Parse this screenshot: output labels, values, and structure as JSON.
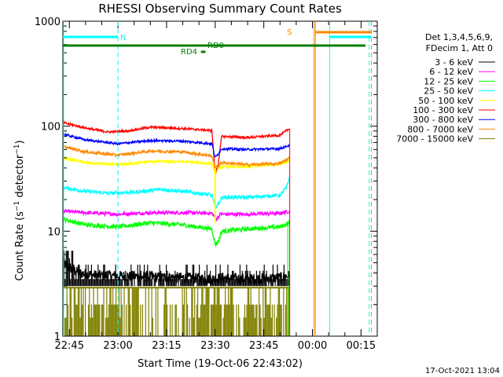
{
  "chart_data": {
    "type": "line",
    "title": "RHESSI Observing Summary Count Rates",
    "xlabel": "Start Time (19-Oct-06 22:43:02)",
    "ylabel": "Count Rate (s^-1 detector^-1)",
    "ylabel_parts": {
      "main": "Count Rate (s",
      "sup1": "−1",
      "mid": " detector",
      "sup2": "−1",
      "end": ")"
    },
    "y_scale": "log",
    "ylim": [
      1,
      1000
    ],
    "xlim_minutes": [
      -2,
      95
    ],
    "x_ticks": [
      {
        "label": "22:45",
        "m": 0
      },
      {
        "label": "23:00",
        "m": 15
      },
      {
        "label": "23:15",
        "m": 30
      },
      {
        "label": "23:30",
        "m": 45
      },
      {
        "label": "23:45",
        "m": 60
      },
      {
        "label": "00:00",
        "m": 75
      },
      {
        "label": "00:15",
        "m": 90
      }
    ],
    "y_ticks": [
      {
        "label": "1",
        "v": 1
      },
      {
        "label": "10",
        "v": 10
      },
      {
        "label": "100",
        "v": 100
      },
      {
        "label": "1000",
        "v": 1000
      }
    ],
    "legend": {
      "header": [
        "Det 1,3,4,5,6,9,",
        "FDecim 1, Att 0"
      ],
      "position": "right"
    },
    "series": [
      {
        "name": "3 - 6 keV",
        "color": "#000000",
        "noise": 0.12,
        "points": [
          [
            -2,
            5.0
          ],
          [
            0,
            4.5
          ],
          [
            3,
            4.0
          ],
          [
            8,
            3.8
          ],
          [
            20,
            3.7
          ],
          [
            35,
            3.6
          ],
          [
            44,
            3.5
          ],
          [
            47,
            3.6
          ],
          [
            55,
            3.5
          ],
          [
            65,
            3.6
          ],
          [
            68,
            3.8
          ]
        ]
      },
      {
        "name": "6 - 12 keV",
        "color": "#ff00ff",
        "noise": 0.04,
        "points": [
          [
            -2,
            15.5
          ],
          [
            5,
            15
          ],
          [
            15,
            14.5
          ],
          [
            25,
            15
          ],
          [
            35,
            15
          ],
          [
            44,
            14.8
          ],
          [
            45.5,
            13
          ],
          [
            46.5,
            14.5
          ],
          [
            55,
            14.5
          ],
          [
            65,
            14.8
          ],
          [
            68,
            15.5
          ]
        ]
      },
      {
        "name": "12 - 25 keV",
        "color": "#00ff00",
        "noise": 0.05,
        "points": [
          [
            -2,
            13
          ],
          [
            5,
            11.5
          ],
          [
            15,
            11
          ],
          [
            25,
            12
          ],
          [
            35,
            11.5
          ],
          [
            44,
            10.5
          ],
          [
            45,
            7.5
          ],
          [
            46,
            8
          ],
          [
            47,
            10
          ],
          [
            55,
            10.5
          ],
          [
            65,
            11
          ],
          [
            68,
            12
          ]
        ]
      },
      {
        "name": "25 - 50 keV",
        "color": "#00ffff",
        "noise": 0.04,
        "points": [
          [
            -2,
            26
          ],
          [
            5,
            24
          ],
          [
            12,
            23
          ],
          [
            20,
            23.5
          ],
          [
            28,
            25
          ],
          [
            35,
            24
          ],
          [
            44,
            22
          ],
          [
            45,
            17
          ],
          [
            46,
            18
          ],
          [
            47,
            21
          ],
          [
            55,
            21
          ],
          [
            65,
            22
          ],
          [
            67,
            26
          ],
          [
            68,
            33
          ]
        ]
      },
      {
        "name": "50 - 100 keV",
        "color": "#ffff00",
        "noise": 0.03,
        "points": [
          [
            -2,
            50
          ],
          [
            5,
            45
          ],
          [
            15,
            43
          ],
          [
            25,
            46
          ],
          [
            35,
            46
          ],
          [
            44,
            44
          ],
          [
            45,
            36
          ],
          [
            46,
            40
          ],
          [
            47,
            41
          ],
          [
            55,
            41
          ],
          [
            65,
            44
          ],
          [
            68,
            47
          ]
        ]
      },
      {
        "name": "100 - 300 keV",
        "color": "#ff0000",
        "noise": 0.025,
        "points": [
          [
            -2,
            108
          ],
          [
            5,
            96
          ],
          [
            12,
            88
          ],
          [
            18,
            90
          ],
          [
            25,
            98
          ],
          [
            35,
            95
          ],
          [
            44,
            91
          ],
          [
            45,
            35
          ],
          [
            46,
            45
          ],
          [
            47,
            80
          ],
          [
            55,
            78
          ],
          [
            65,
            82
          ],
          [
            68,
            95
          ]
        ]
      },
      {
        "name": "300 - 800 keV",
        "color": "#0000ff",
        "noise": 0.025,
        "points": [
          [
            -2,
            84
          ],
          [
            5,
            74
          ],
          [
            15,
            68
          ],
          [
            25,
            73
          ],
          [
            35,
            72
          ],
          [
            44,
            68
          ],
          [
            45,
            50
          ],
          [
            46,
            55
          ],
          [
            47,
            61
          ],
          [
            55,
            60
          ],
          [
            65,
            61
          ],
          [
            68,
            66
          ]
        ]
      },
      {
        "name": "800 - 7000 keV",
        "color": "#ff8800",
        "noise": 0.03,
        "points": [
          [
            -2,
            64
          ],
          [
            5,
            57
          ],
          [
            15,
            53
          ],
          [
            25,
            58
          ],
          [
            35,
            57
          ],
          [
            44,
            52
          ],
          [
            45,
            40
          ],
          [
            46,
            42
          ],
          [
            47,
            45
          ],
          [
            55,
            43
          ],
          [
            65,
            44
          ],
          [
            68,
            50
          ]
        ]
      },
      {
        "name": "7000 - 15000 keV",
        "color": "#808000",
        "noise": 0,
        "points": []
      }
    ],
    "annotations": [
      {
        "label": "N",
        "color": "#00ffff"
      },
      {
        "label": "S",
        "color": "#ff8800"
      },
      {
        "label": "RD0",
        "color": "#008000"
      },
      {
        "label": "RD4",
        "color": "#008000"
      }
    ],
    "footer_date": "17-Oct-2021 13:04"
  }
}
